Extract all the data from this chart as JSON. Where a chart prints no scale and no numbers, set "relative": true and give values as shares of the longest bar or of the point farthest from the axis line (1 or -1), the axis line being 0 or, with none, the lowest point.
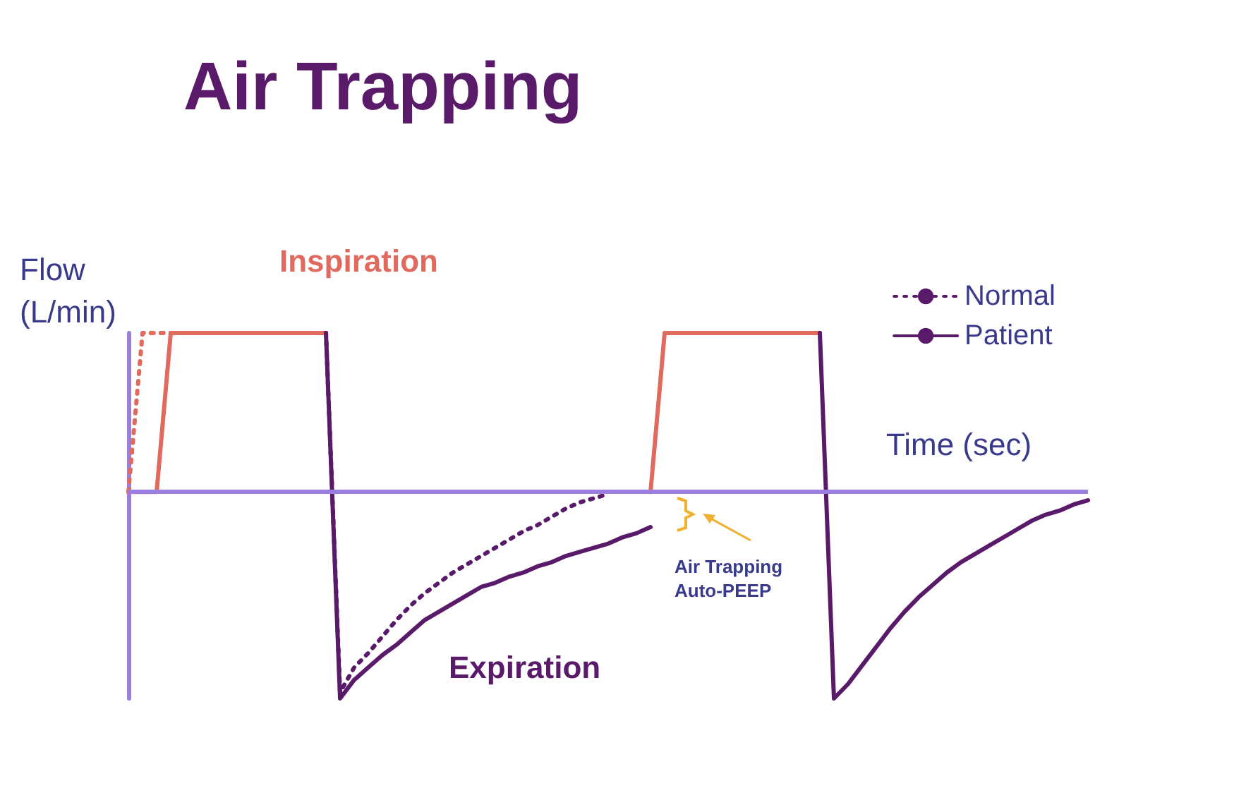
{
  "chart_data": {
    "type": "line",
    "title": "Air Trapping",
    "xlabel": "Time (sec)",
    "ylabel": "Flow (L/min)",
    "relative": true,
    "grid": false,
    "legend": "top right",
    "marker": "none",
    "ref_lines": [
      {
        "axis": "y",
        "value": 0,
        "color": "#9b7fe0"
      }
    ],
    "annotations": [
      "Inspiration",
      "Expiration",
      "Air Trapping Auto-PEEP"
    ],
    "categories": [
      null,
      null,
      null,
      null,
      null,
      null,
      null,
      null,
      null,
      null,
      null,
      null,
      null,
      null,
      null,
      null,
      null,
      null,
      null,
      null,
      null,
      null,
      null,
      null,
      null,
      null,
      null,
      null,
      null,
      null,
      null,
      null,
      null,
      null,
      null,
      null,
      null,
      null,
      null,
      null,
      null,
      null,
      null,
      null,
      null,
      null,
      null,
      null,
      null,
      null,
      null,
      null,
      null,
      null,
      null,
      null,
      null,
      null,
      null,
      null,
      null,
      null,
      null,
      null,
      null,
      null,
      null,
      null,
      null
    ],
    "series": [
      {
        "color": "#e06a5e",
        "line_style": "dotted",
        "values": [
          0,
          0.77,
          0.77,
          0.77,
          0.77,
          0.77,
          0.77,
          0.77,
          0.77,
          0.77,
          0.77,
          0.77,
          0.77,
          0.77,
          0.77,
          null,
          null,
          null,
          null,
          null,
          null,
          null,
          null,
          null,
          null,
          null,
          null,
          null,
          null,
          null,
          null,
          null,
          null,
          null,
          null,
          null,
          null,
          null,
          null,
          null,
          null,
          null,
          null,
          null,
          null,
          null,
          null,
          null,
          null,
          null,
          null,
          null,
          null,
          null,
          null,
          null,
          null,
          null,
          null,
          null,
          null,
          null,
          null,
          null,
          null,
          null,
          null,
          null,
          null
        ]
      },
      {
        "name": "Normal",
        "color": "#5a1a6a",
        "line_style": "dotted",
        "values": [
          null,
          null,
          null,
          null,
          null,
          null,
          null,
          null,
          null,
          null,
          null,
          null,
          null,
          null,
          0.77,
          -0.97,
          -0.85,
          -0.78,
          -0.7,
          -0.62,
          -0.55,
          -0.49,
          -0.44,
          -0.39,
          -0.35,
          -0.31,
          -0.27,
          -0.23,
          -0.19,
          -0.16,
          -0.12,
          -0.08,
          -0.05,
          -0.03,
          -0.01,
          null,
          null,
          null,
          null,
          null,
          null,
          null,
          null,
          null,
          null,
          null,
          null,
          null,
          null,
          null,
          null,
          null,
          null,
          null,
          null,
          null,
          null,
          null,
          null,
          null,
          null,
          null,
          null,
          null,
          null,
          null,
          null,
          null,
          null
        ]
      },
      {
        "color": "#e06a5e",
        "line_style": "solid",
        "values": [
          0,
          0,
          0,
          0.77,
          0.77,
          0.77,
          0.77,
          0.77,
          0.77,
          0.77,
          0.77,
          0.77,
          0.77,
          0.77,
          0.77,
          null,
          null,
          null,
          null,
          null,
          null,
          null,
          null,
          null,
          null,
          null,
          null,
          null,
          null,
          null,
          null,
          null,
          null,
          null,
          null,
          null,
          null,
          0,
          0.77,
          0.77,
          0.77,
          0.77,
          0.77,
          0.77,
          0.77,
          0.77,
          0.77,
          0.77,
          0.77,
          0.77,
          null,
          null,
          null,
          null,
          null,
          null,
          null,
          null,
          null,
          null,
          null,
          null,
          null,
          null,
          null,
          null,
          null,
          null,
          null
        ]
      },
      {
        "name": "Patient",
        "color": "#5a1a6a",
        "line_style": "solid",
        "values": [
          null,
          null,
          null,
          null,
          null,
          null,
          null,
          null,
          null,
          null,
          null,
          null,
          null,
          null,
          0.77,
          -1,
          -0.91,
          -0.85,
          -0.79,
          -0.74,
          -0.68,
          -0.62,
          -0.58,
          -0.54,
          -0.5,
          -0.46,
          -0.44,
          -0.41,
          -0.39,
          -0.36,
          -0.34,
          -0.31,
          -0.29,
          -0.27,
          -0.25,
          -0.22,
          -0.2,
          -0.17,
          null,
          null,
          null,
          null,
          null,
          null,
          null,
          null,
          null,
          null,
          null,
          0.77,
          -1,
          -0.93,
          -0.84,
          -0.75,
          -0.66,
          -0.58,
          -0.51,
          -0.45,
          -0.39,
          -0.34,
          -0.3,
          -0.26,
          -0.22,
          -0.18,
          -0.14,
          -0.11,
          -0.09,
          -0.06,
          -0.04
        ]
      }
    ]
  }
}
